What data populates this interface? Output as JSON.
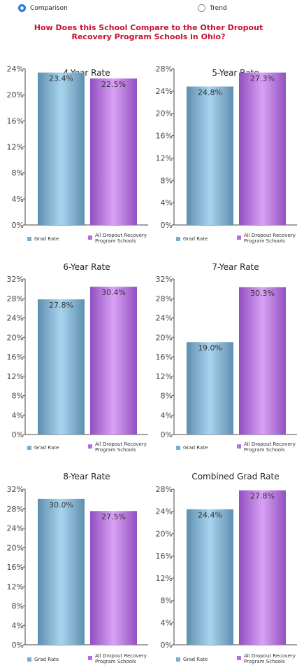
{
  "toggle": {
    "comparison_label": "Comparison",
    "trend_label": "Trend",
    "selected": "comparison"
  },
  "page_title_line1": "How Does this School Compare to the Other Dropout",
  "page_title_line2": "Recovery Program Schools in Ohio?",
  "colors": {
    "grad_rate": "#7aaed0",
    "all_dropout": "#b36ee0",
    "title": "#c8102e"
  },
  "legend": {
    "series1": "Grad Rate",
    "series2_line1": "All Dropout Recovery",
    "series2_line2": "Program Schools"
  },
  "chart_data": [
    {
      "type": "bar",
      "title": "4-Year Rate",
      "series": [
        {
          "name": "Grad Rate",
          "values": [
            23.4
          ]
        },
        {
          "name": "All Dropout Recovery Program Schools",
          "values": [
            22.5
          ]
        }
      ],
      "ylim": [
        0,
        24
      ],
      "ticks": [
        0,
        4,
        8,
        12,
        16,
        20,
        24
      ],
      "tick_labels": [
        "0%",
        "4%",
        "8%",
        "12%",
        "16%",
        "20%",
        "24%"
      ],
      "data_labels": [
        "23.4%",
        "22.5%"
      ]
    },
    {
      "type": "bar",
      "title": "5-Year Rate",
      "series": [
        {
          "name": "Grad Rate",
          "values": [
            24.8
          ]
        },
        {
          "name": "All Dropout Recovery Program Schools",
          "values": [
            27.3
          ]
        }
      ],
      "ylim": [
        0,
        28
      ],
      "ticks": [
        0,
        4,
        8,
        12,
        16,
        20,
        24,
        28
      ],
      "tick_labels": [
        "0%",
        "4%",
        "8%",
        "12%",
        "16%",
        "20%",
        "24%",
        "28%"
      ],
      "data_labels": [
        "24.8%",
        "27.3%"
      ]
    },
    {
      "type": "bar",
      "title": "6-Year Rate",
      "series": [
        {
          "name": "Grad Rate",
          "values": [
            27.8
          ]
        },
        {
          "name": "All Dropout Recovery Program Schools",
          "values": [
            30.4
          ]
        }
      ],
      "ylim": [
        0,
        32
      ],
      "ticks": [
        0,
        4,
        8,
        12,
        16,
        20,
        24,
        28,
        32
      ],
      "tick_labels": [
        "0%",
        "4%",
        "8%",
        "12%",
        "16%",
        "20%",
        "24%",
        "28%",
        "32%"
      ],
      "data_labels": [
        "27.8%",
        "30.4%"
      ]
    },
    {
      "type": "bar",
      "title": "7-Year Rate",
      "series": [
        {
          "name": "Grad Rate",
          "values": [
            19.0
          ]
        },
        {
          "name": "All Dropout Recovery Program Schools",
          "values": [
            30.3
          ]
        }
      ],
      "ylim": [
        0,
        32
      ],
      "ticks": [
        0,
        4,
        8,
        12,
        16,
        20,
        24,
        28,
        32
      ],
      "tick_labels": [
        "0%",
        "4%",
        "8%",
        "12%",
        "16%",
        "20%",
        "24%",
        "28%",
        "32%"
      ],
      "data_labels": [
        "19.0%",
        "30.3%"
      ]
    },
    {
      "type": "bar",
      "title": "8-Year Rate",
      "series": [
        {
          "name": "Grad Rate",
          "values": [
            30.0
          ]
        },
        {
          "name": "All Dropout Recovery Program Schools",
          "values": [
            27.5
          ]
        }
      ],
      "ylim": [
        0,
        32
      ],
      "ticks": [
        0,
        4,
        8,
        12,
        16,
        20,
        24,
        28,
        32
      ],
      "tick_labels": [
        "0%",
        "4%",
        "8%",
        "12%",
        "16%",
        "20%",
        "24%",
        "28%",
        "32%"
      ],
      "data_labels": [
        "30.0%",
        "27.5%"
      ]
    },
    {
      "type": "bar",
      "title": "Combined Grad Rate",
      "series": [
        {
          "name": "Grad Rate",
          "values": [
            24.4
          ]
        },
        {
          "name": "All Dropout Recovery Program Schools",
          "values": [
            27.8
          ]
        }
      ],
      "ylim": [
        0,
        28
      ],
      "ticks": [
        0,
        4,
        8,
        12,
        16,
        20,
        24,
        28
      ],
      "tick_labels": [
        "0%",
        "4%",
        "8%",
        "12%",
        "16%",
        "20%",
        "24%",
        "28%"
      ],
      "data_labels": [
        "24.4%",
        "27.8%"
      ]
    }
  ]
}
